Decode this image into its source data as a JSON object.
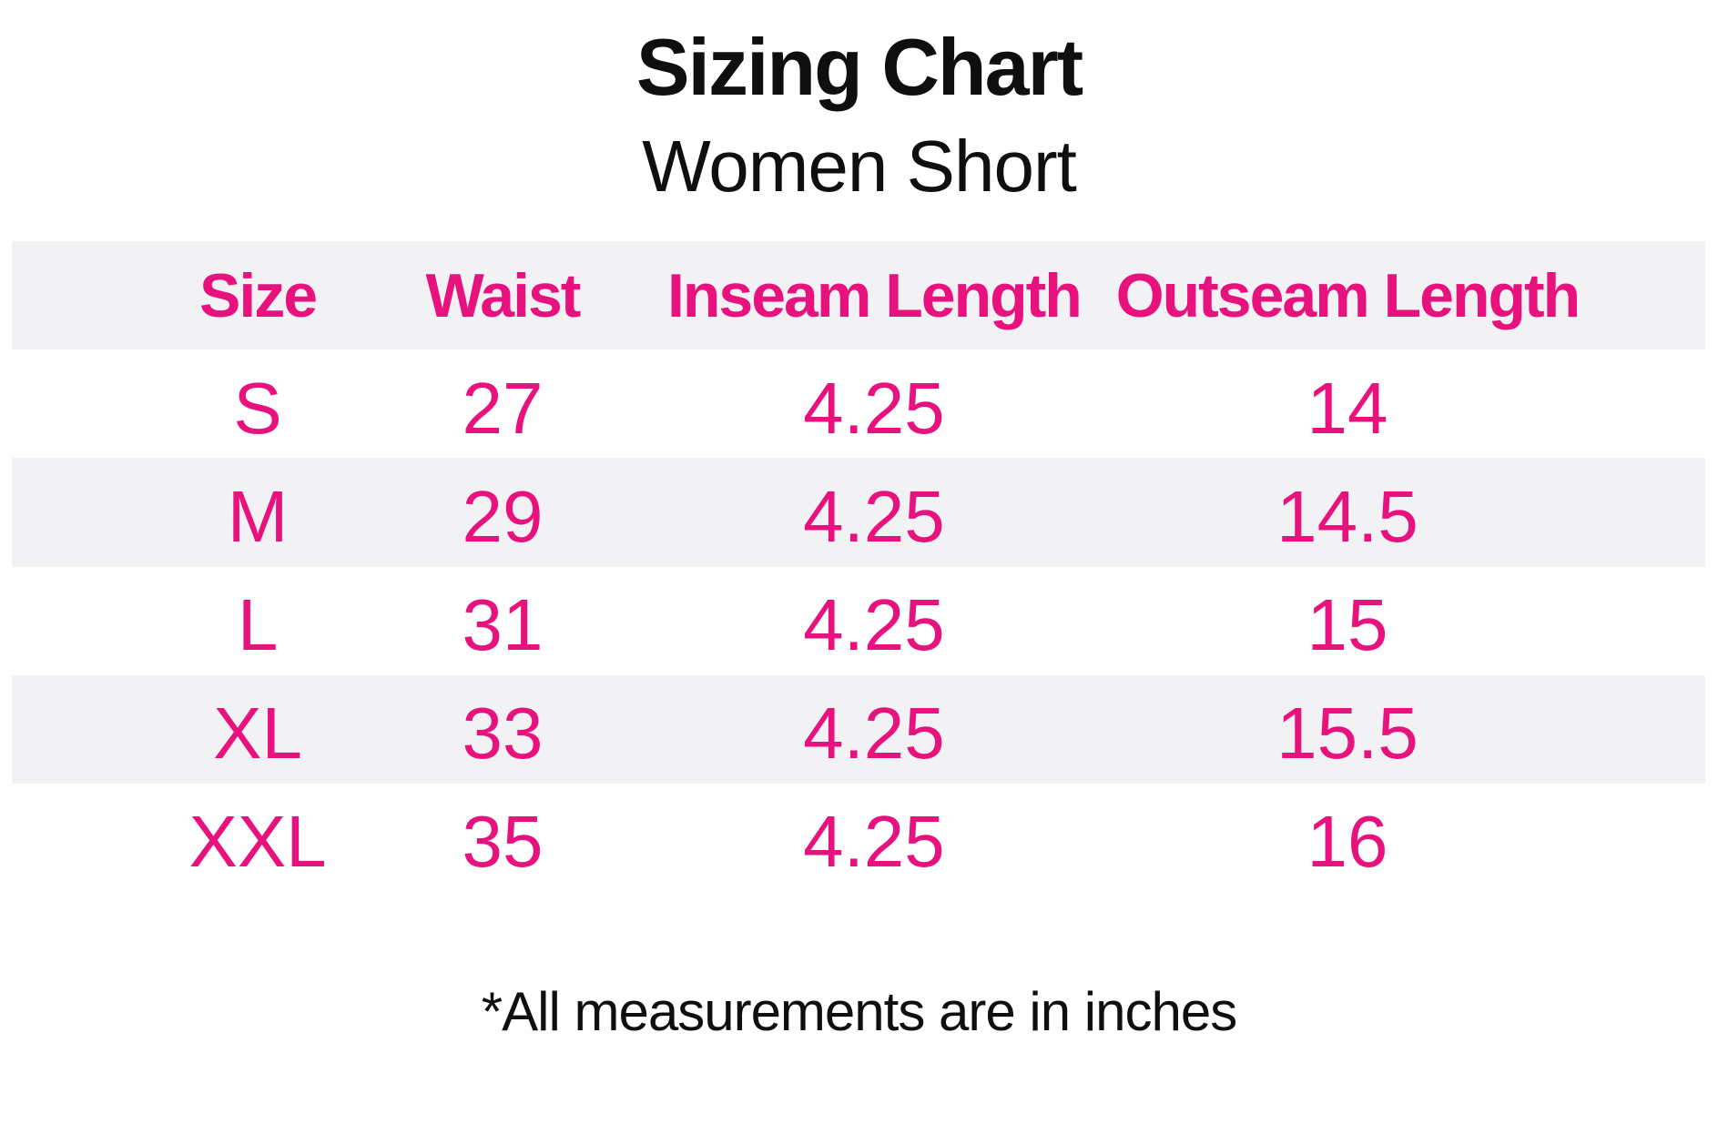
{
  "page": {
    "title": "Sizing Chart",
    "subtitle": "Women Short",
    "footnote": "*All measurements are in inches"
  },
  "colors": {
    "accent_pink": "#E8127E",
    "stripe_gray": "#F2F2F4",
    "text_black": "#0F0F0F",
    "background": "#FFFFFF"
  },
  "chart_data": {
    "type": "table",
    "title": "Sizing Chart",
    "subtitle": "Women Short",
    "columns": [
      "Size",
      "Waist",
      "Inseam Length",
      "Outseam Length"
    ],
    "rows": [
      [
        "S",
        "27",
        "4.25",
        "14"
      ],
      [
        "M",
        "29",
        "4.25",
        "14.5"
      ],
      [
        "L",
        "31",
        "4.25",
        "15"
      ],
      [
        "XL",
        "33",
        "4.25",
        "15.5"
      ],
      [
        "XXL",
        "35",
        "4.25",
        "16"
      ]
    ],
    "units": "inches",
    "footnote": "*All measurements are in inches",
    "layout": {
      "striped_rows": true,
      "header_background": "#F2F2F4",
      "stripe_pattern": [
        "header-gray",
        "white",
        "gray",
        "white",
        "gray",
        "white"
      ],
      "text_alignment": "center"
    }
  }
}
